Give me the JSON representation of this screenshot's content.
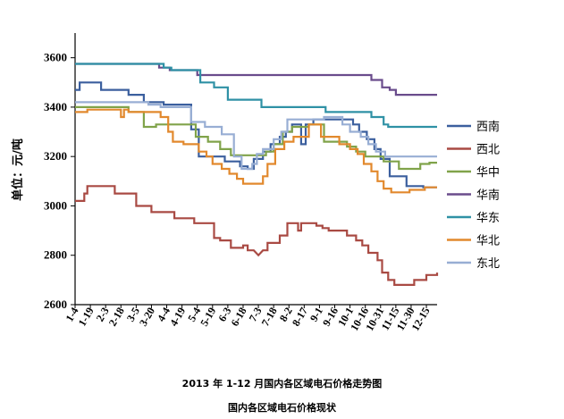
{
  "chart_data": {
    "type": "line",
    "ylabel": "单位：元/吨",
    "ylim": [
      2600,
      3700
    ],
    "yticks": [
      2600,
      2800,
      3000,
      3200,
      3400,
      3600
    ],
    "x_tick_labels": [
      "1-4",
      "1-19",
      "2-3",
      "2-18",
      "3-5",
      "3-20",
      "4-4",
      "4-19",
      "5-4",
      "5-19",
      "6-3",
      "6-18",
      "7-3",
      "7-18",
      "8-2",
      "8-17",
      "9-1",
      "9-16",
      "10-1",
      "10-16",
      "10-31",
      "11-15",
      "11-30",
      "12-15"
    ],
    "x_max": 23.7,
    "legend_position": "right",
    "series": [
      {
        "name": "西南",
        "color": "#3b5f9e",
        "points": [
          [
            0,
            3470
          ],
          [
            0.3,
            3470
          ],
          [
            0.3,
            3500
          ],
          [
            1.7,
            3500
          ],
          [
            1.7,
            3470
          ],
          [
            3.5,
            3470
          ],
          [
            3.5,
            3450
          ],
          [
            4.5,
            3450
          ],
          [
            4.5,
            3420
          ],
          [
            5.8,
            3420
          ],
          [
            5.8,
            3410
          ],
          [
            7.6,
            3410
          ],
          [
            7.6,
            3310
          ],
          [
            8.1,
            3310
          ],
          [
            8.1,
            3200
          ],
          [
            9.8,
            3200
          ],
          [
            9.8,
            3180
          ],
          [
            10.8,
            3180
          ],
          [
            10.8,
            3160
          ],
          [
            11.3,
            3160
          ],
          [
            11.3,
            3150
          ],
          [
            11.7,
            3150
          ],
          [
            11.7,
            3190
          ],
          [
            12.3,
            3190
          ],
          [
            12.3,
            3220
          ],
          [
            12.8,
            3220
          ],
          [
            12.8,
            3250
          ],
          [
            13.4,
            3250
          ],
          [
            13.4,
            3280
          ],
          [
            13.8,
            3280
          ],
          [
            13.8,
            3300
          ],
          [
            14.2,
            3300
          ],
          [
            14.2,
            3330
          ],
          [
            14.8,
            3330
          ],
          [
            14.8,
            3250
          ],
          [
            15.1,
            3250
          ],
          [
            15.1,
            3330
          ],
          [
            15.6,
            3330
          ],
          [
            15.6,
            3350
          ],
          [
            18.2,
            3350
          ],
          [
            18.2,
            3330
          ],
          [
            18.6,
            3330
          ],
          [
            18.6,
            3300
          ],
          [
            19.1,
            3300
          ],
          [
            19.1,
            3270
          ],
          [
            19.6,
            3270
          ],
          [
            19.6,
            3230
          ],
          [
            20.0,
            3230
          ],
          [
            20.0,
            3190
          ],
          [
            20.6,
            3190
          ],
          [
            20.6,
            3120
          ],
          [
            21.7,
            3120
          ],
          [
            21.7,
            3080
          ],
          [
            22.8,
            3080
          ],
          [
            22.8,
            3075
          ],
          [
            23.7,
            3075
          ]
        ]
      },
      {
        "name": "西北",
        "color": "#a94a43",
        "points": [
          [
            0,
            3020
          ],
          [
            0.6,
            3020
          ],
          [
            0.6,
            3050
          ],
          [
            0.8,
            3050
          ],
          [
            0.8,
            3080
          ],
          [
            2.6,
            3080
          ],
          [
            2.6,
            3050
          ],
          [
            4.0,
            3050
          ],
          [
            4.0,
            3000
          ],
          [
            5.0,
            3000
          ],
          [
            5.0,
            2975
          ],
          [
            6.5,
            2975
          ],
          [
            6.5,
            2950
          ],
          [
            7.8,
            2950
          ],
          [
            7.8,
            2930
          ],
          [
            9.1,
            2930
          ],
          [
            9.1,
            2870
          ],
          [
            9.5,
            2870
          ],
          [
            9.5,
            2860
          ],
          [
            10.2,
            2860
          ],
          [
            10.2,
            2830
          ],
          [
            11.0,
            2830
          ],
          [
            11.0,
            2840
          ],
          [
            11.3,
            2840
          ],
          [
            11.3,
            2820
          ],
          [
            11.7,
            2820
          ],
          [
            12.0,
            2800
          ],
          [
            12.3,
            2820
          ],
          [
            12.6,
            2820
          ],
          [
            12.6,
            2850
          ],
          [
            13.4,
            2850
          ],
          [
            13.4,
            2880
          ],
          [
            13.9,
            2880
          ],
          [
            13.9,
            2930
          ],
          [
            14.6,
            2930
          ],
          [
            14.6,
            2900
          ],
          [
            14.8,
            2900
          ],
          [
            14.8,
            2930
          ],
          [
            15.8,
            2930
          ],
          [
            15.8,
            2920
          ],
          [
            16.2,
            2920
          ],
          [
            16.2,
            2910
          ],
          [
            16.6,
            2910
          ],
          [
            16.6,
            2900
          ],
          [
            17.8,
            2900
          ],
          [
            17.8,
            2880
          ],
          [
            18.4,
            2880
          ],
          [
            18.4,
            2860
          ],
          [
            18.8,
            2860
          ],
          [
            18.8,
            2840
          ],
          [
            19.2,
            2840
          ],
          [
            19.2,
            2810
          ],
          [
            19.8,
            2810
          ],
          [
            19.8,
            2780
          ],
          [
            20.1,
            2780
          ],
          [
            20.1,
            2730
          ],
          [
            20.5,
            2730
          ],
          [
            20.5,
            2700
          ],
          [
            20.9,
            2700
          ],
          [
            20.9,
            2680
          ],
          [
            22.2,
            2680
          ],
          [
            22.2,
            2700
          ],
          [
            23.0,
            2700
          ],
          [
            23.0,
            2720
          ],
          [
            23.7,
            2720
          ],
          [
            23.7,
            2730
          ]
        ]
      },
      {
        "name": "华中",
        "color": "#80a34a",
        "points": [
          [
            0,
            3400
          ],
          [
            3.5,
            3400
          ],
          [
            3.5,
            3380
          ],
          [
            4.5,
            3380
          ],
          [
            4.5,
            3320
          ],
          [
            5.3,
            3320
          ],
          [
            5.3,
            3330
          ],
          [
            7.9,
            3330
          ],
          [
            7.9,
            3280
          ],
          [
            8.7,
            3280
          ],
          [
            8.7,
            3260
          ],
          [
            9.5,
            3260
          ],
          [
            9.5,
            3230
          ],
          [
            10.2,
            3230
          ],
          [
            10.2,
            3205
          ],
          [
            12.5,
            3205
          ],
          [
            12.5,
            3220
          ],
          [
            13.0,
            3220
          ],
          [
            13.0,
            3250
          ],
          [
            13.6,
            3250
          ],
          [
            13.6,
            3300
          ],
          [
            14.2,
            3300
          ],
          [
            14.2,
            3320
          ],
          [
            15.3,
            3320
          ],
          [
            15.3,
            3330
          ],
          [
            16.3,
            3330
          ],
          [
            16.3,
            3260
          ],
          [
            17.8,
            3260
          ],
          [
            17.8,
            3240
          ],
          [
            18.4,
            3240
          ],
          [
            18.4,
            3220
          ],
          [
            19.0,
            3220
          ],
          [
            19.0,
            3200
          ],
          [
            20.2,
            3200
          ],
          [
            20.2,
            3180
          ],
          [
            21.2,
            3180
          ],
          [
            21.2,
            3150
          ],
          [
            22.6,
            3150
          ],
          [
            22.6,
            3170
          ],
          [
            23.2,
            3170
          ],
          [
            23.2,
            3175
          ],
          [
            23.7,
            3175
          ]
        ]
      },
      {
        "name": "华南",
        "color": "#6a4c8c",
        "points": [
          [
            0,
            3575
          ],
          [
            5.5,
            3575
          ],
          [
            5.5,
            3560
          ],
          [
            6.2,
            3560
          ],
          [
            6.2,
            3550
          ],
          [
            8.0,
            3550
          ],
          [
            8.0,
            3530
          ],
          [
            19.4,
            3530
          ],
          [
            19.4,
            3510
          ],
          [
            20.1,
            3510
          ],
          [
            20.1,
            3480
          ],
          [
            20.6,
            3480
          ],
          [
            20.6,
            3470
          ],
          [
            21.0,
            3470
          ],
          [
            21.0,
            3450
          ],
          [
            23.7,
            3450
          ]
        ]
      },
      {
        "name": "华东",
        "color": "#2f91a5",
        "points": [
          [
            0,
            3575
          ],
          [
            5.8,
            3575
          ],
          [
            5.8,
            3560
          ],
          [
            6.3,
            3560
          ],
          [
            6.3,
            3550
          ],
          [
            8.2,
            3550
          ],
          [
            8.2,
            3500
          ],
          [
            9.1,
            3500
          ],
          [
            9.1,
            3480
          ],
          [
            10.0,
            3480
          ],
          [
            10.0,
            3430
          ],
          [
            12.2,
            3430
          ],
          [
            12.2,
            3400
          ],
          [
            16.4,
            3400
          ],
          [
            16.4,
            3380
          ],
          [
            19.4,
            3380
          ],
          [
            19.4,
            3360
          ],
          [
            20.2,
            3360
          ],
          [
            20.2,
            3330
          ],
          [
            20.5,
            3330
          ],
          [
            20.5,
            3320
          ],
          [
            23.7,
            3320
          ]
        ]
      },
      {
        "name": "华北",
        "color": "#e2892d",
        "points": [
          [
            0,
            3380
          ],
          [
            0.8,
            3380
          ],
          [
            0.8,
            3390
          ],
          [
            3.0,
            3390
          ],
          [
            3.0,
            3360
          ],
          [
            3.2,
            3360
          ],
          [
            3.2,
            3390
          ],
          [
            3.5,
            3390
          ],
          [
            3.5,
            3380
          ],
          [
            5.6,
            3380
          ],
          [
            5.6,
            3360
          ],
          [
            6.1,
            3360
          ],
          [
            6.1,
            3300
          ],
          [
            6.4,
            3300
          ],
          [
            6.4,
            3260
          ],
          [
            7.1,
            3260
          ],
          [
            7.1,
            3250
          ],
          [
            8.1,
            3250
          ],
          [
            8.1,
            3220
          ],
          [
            8.6,
            3220
          ],
          [
            8.6,
            3200
          ],
          [
            9.0,
            3200
          ],
          [
            9.0,
            3170
          ],
          [
            9.6,
            3170
          ],
          [
            9.6,
            3150
          ],
          [
            10.1,
            3150
          ],
          [
            10.1,
            3130
          ],
          [
            10.6,
            3130
          ],
          [
            10.6,
            3110
          ],
          [
            11.0,
            3110
          ],
          [
            11.0,
            3090
          ],
          [
            12.3,
            3090
          ],
          [
            12.3,
            3120
          ],
          [
            12.6,
            3120
          ],
          [
            12.6,
            3170
          ],
          [
            13.1,
            3170
          ],
          [
            13.1,
            3230
          ],
          [
            13.7,
            3230
          ],
          [
            13.7,
            3260
          ],
          [
            14.3,
            3260
          ],
          [
            14.3,
            3280
          ],
          [
            15.3,
            3280
          ],
          [
            15.3,
            3330
          ],
          [
            16.1,
            3330
          ],
          [
            16.1,
            3280
          ],
          [
            17.3,
            3280
          ],
          [
            17.3,
            3250
          ],
          [
            18.0,
            3250
          ],
          [
            18.0,
            3230
          ],
          [
            18.5,
            3230
          ],
          [
            18.5,
            3210
          ],
          [
            18.9,
            3210
          ],
          [
            18.9,
            3170
          ],
          [
            19.4,
            3170
          ],
          [
            19.4,
            3140
          ],
          [
            19.8,
            3140
          ],
          [
            19.8,
            3100
          ],
          [
            20.2,
            3100
          ],
          [
            20.2,
            3070
          ],
          [
            20.7,
            3070
          ],
          [
            20.7,
            3055
          ],
          [
            21.9,
            3055
          ],
          [
            21.9,
            3065
          ],
          [
            22.9,
            3065
          ],
          [
            22.9,
            3075
          ],
          [
            23.7,
            3075
          ]
        ]
      },
      {
        "name": "东北",
        "color": "#98aed4",
        "points": [
          [
            0,
            3420
          ],
          [
            4.8,
            3420
          ],
          [
            4.8,
            3410
          ],
          [
            5.6,
            3410
          ],
          [
            5.6,
            3400
          ],
          [
            7.6,
            3400
          ],
          [
            7.6,
            3340
          ],
          [
            8.5,
            3340
          ],
          [
            8.5,
            3320
          ],
          [
            9.6,
            3320
          ],
          [
            9.6,
            3290
          ],
          [
            10.4,
            3290
          ],
          [
            10.4,
            3200
          ],
          [
            10.9,
            3200
          ],
          [
            10.9,
            3150
          ],
          [
            11.6,
            3150
          ],
          [
            11.6,
            3170
          ],
          [
            11.9,
            3170
          ],
          [
            11.9,
            3210
          ],
          [
            12.3,
            3210
          ],
          [
            12.3,
            3230
          ],
          [
            13.0,
            3230
          ],
          [
            13.0,
            3270
          ],
          [
            13.5,
            3270
          ],
          [
            13.5,
            3300
          ],
          [
            13.9,
            3300
          ],
          [
            13.9,
            3350
          ],
          [
            16.3,
            3350
          ],
          [
            16.3,
            3360
          ],
          [
            17.5,
            3360
          ],
          [
            17.5,
            3330
          ],
          [
            18.0,
            3330
          ],
          [
            18.0,
            3300
          ],
          [
            18.7,
            3300
          ],
          [
            18.7,
            3280
          ],
          [
            19.2,
            3280
          ],
          [
            19.2,
            3250
          ],
          [
            19.7,
            3250
          ],
          [
            19.7,
            3220
          ],
          [
            20.3,
            3220
          ],
          [
            20.3,
            3200
          ],
          [
            23.7,
            3200
          ]
        ]
      }
    ]
  },
  "captions": {
    "line1": "2013 年 1-12 月国内各区域电石价格走势图",
    "line2": "国内各区域电石价格现状"
  }
}
